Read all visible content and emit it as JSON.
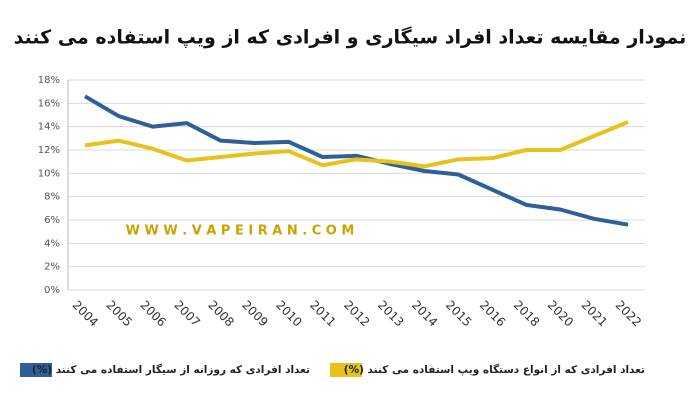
{
  "chart_data": {
    "type": "line",
    "title": "نمودار مقایسه تعداد افراد سیگاری و افرادی که از ویپ استفاده می کنند",
    "watermark": "W W W . V A P E I R A N . C O M",
    "categories": [
      "2004",
      "2005",
      "2006",
      "2007",
      "2008",
      "2009",
      "2010",
      "2011",
      "2012",
      "2013",
      "2014",
      "2015",
      "2016",
      "2018",
      "2020",
      "2021",
      "2022"
    ],
    "series": [
      {
        "name": "تعداد افرادی که روزانه از سیگار استفاده می کنند (%)",
        "color": "#2f5f97",
        "values": [
          16.6,
          14.9,
          14.0,
          14.3,
          12.8,
          12.6,
          12.7,
          11.4,
          11.5,
          10.8,
          10.2,
          9.9,
          8.6,
          7.3,
          6.9,
          6.1,
          5.6
        ]
      },
      {
        "name": "تعداد افرادی که از انواع دستگاه ویپ استفاده می کنند (%)",
        "color": "#e6c21a",
        "values": [
          12.4,
          12.8,
          12.1,
          11.1,
          11.4,
          11.7,
          11.9,
          10.7,
          11.2,
          11.0,
          10.6,
          11.2,
          11.3,
          12.0,
          12.0,
          13.2,
          14.4
        ]
      }
    ],
    "ylim": [
      0,
      18
    ],
    "yticks": [
      {
        "value": 0,
        "label": "0%"
      },
      {
        "value": 2,
        "label": "2%"
      },
      {
        "value": 4,
        "label": "4%"
      },
      {
        "value": 6,
        "label": "6%"
      },
      {
        "value": 8,
        "label": "8%"
      },
      {
        "value": 10,
        "label": "10%"
      },
      {
        "value": 12,
        "label": "12%"
      },
      {
        "value": 14,
        "label": "14%"
      },
      {
        "value": 16,
        "label": "16%"
      },
      {
        "value": 18,
        "label": "18%"
      }
    ],
    "grid": true
  }
}
